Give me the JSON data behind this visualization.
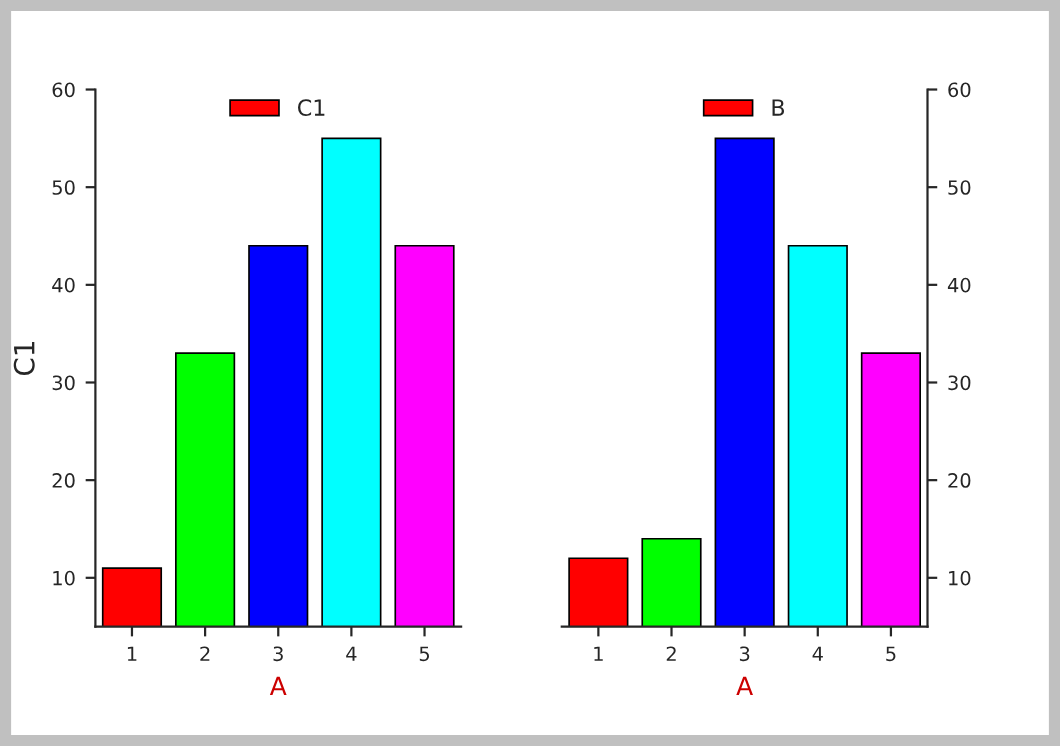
{
  "chart_data": [
    {
      "type": "bar",
      "categories": [
        "1",
        "2",
        "3",
        "4",
        "5"
      ],
      "xlabel": "A",
      "ylabel": "C1",
      "ylim": [
        5,
        60
      ],
      "yticks": [
        10,
        20,
        30,
        40,
        50,
        60
      ],
      "legend": "top",
      "colors": [
        "#ff0000",
        "#00ff00",
        "#0000ff",
        "#00ffff",
        "#ff00ff"
      ],
      "series": [
        {
          "name": "C1",
          "values": [
            11,
            33,
            44,
            55,
            44
          ]
        }
      ]
    },
    {
      "type": "bar",
      "categories": [
        "1",
        "2",
        "3",
        "4",
        "5"
      ],
      "xlabel": "A",
      "y2lim": [
        5,
        60
      ],
      "y2ticks": [
        10,
        20,
        30,
        40,
        50,
        60
      ],
      "legend": "top",
      "colors": [
        "#ff0000",
        "#00ff00",
        "#0000ff",
        "#00ffff",
        "#ff00ff"
      ],
      "series": [
        {
          "name": "B",
          "axis": "y2",
          "values": [
            12,
            14,
            55,
            44,
            33
          ]
        }
      ]
    }
  ]
}
